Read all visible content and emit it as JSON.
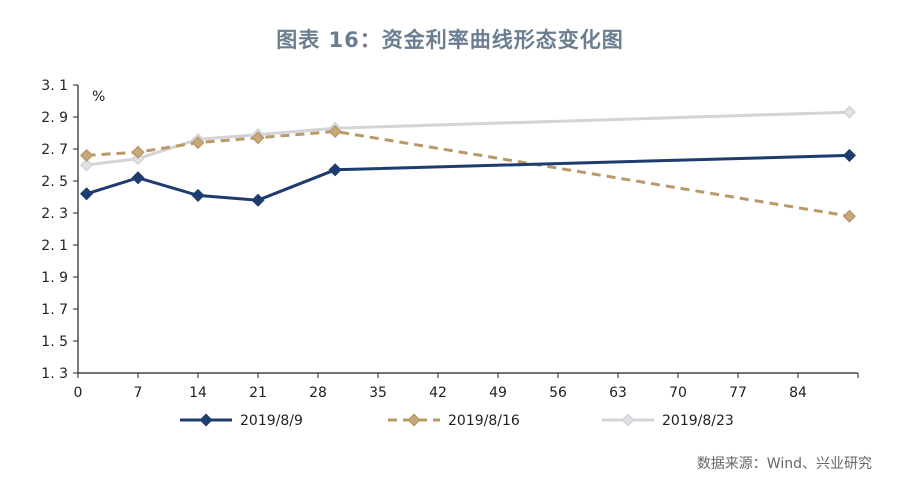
{
  "title": "图表 16：资金利率曲线形态变化图",
  "source": "数据来源：Wind、兴业研究",
  "chart_data": {
    "type": "line",
    "unit_label": "%",
    "ylim": [
      1.3,
      3.1
    ],
    "yticks": [
      "3. 1",
      "2. 9",
      "2. 7",
      "2. 5",
      "2. 3",
      "2. 1",
      "1. 9",
      "1. 7",
      "1. 5",
      "1. 3"
    ],
    "ytick_values": [
      3.1,
      2.9,
      2.7,
      2.5,
      2.3,
      2.1,
      1.9,
      1.7,
      1.5,
      1.3
    ],
    "xlim": [
      0,
      91
    ],
    "xticks": [
      0,
      7,
      14,
      21,
      28,
      35,
      42,
      49,
      56,
      63,
      70,
      77,
      84
    ],
    "grid": false,
    "legend_position": "bottom",
    "series": [
      {
        "name": "2019/8/9",
        "color": "#1f3c6e",
        "style": "solid",
        "marker_fill": "#1f3c6e",
        "x": [
          1,
          7,
          14,
          21,
          30,
          90
        ],
        "y": [
          2.42,
          2.52,
          2.41,
          2.38,
          2.57,
          2.66
        ]
      },
      {
        "name": "2019/8/16",
        "color": "#b8996a",
        "style": "dashed",
        "marker_fill": "#c8aa7a",
        "x": [
          1,
          7,
          14,
          21,
          30,
          90
        ],
        "y": [
          2.66,
          2.68,
          2.74,
          2.77,
          2.81,
          2.28
        ]
      },
      {
        "name": "2019/8/23",
        "color": "#d4d4d8",
        "style": "solid",
        "marker_fill": "#e2e2e6",
        "x": [
          1,
          7,
          14,
          21,
          30,
          90
        ],
        "y": [
          2.6,
          2.64,
          2.76,
          2.79,
          2.83,
          2.93
        ]
      }
    ]
  }
}
